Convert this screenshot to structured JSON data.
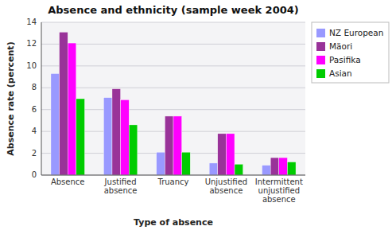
{
  "chart_data": {
    "type": "bar",
    "title": "Absence and ethnicity (sample week 2004)",
    "xlabel": "Type of absence",
    "ylabel": "Absence rate (percent)",
    "categories": [
      "Absence",
      "Justified\nabsence",
      "Truancy",
      "Unjustified\nabsence",
      "Intermittent\nunjustified\nabsence"
    ],
    "series": [
      {
        "name": "NZ European",
        "color": "#9999ff",
        "values": [
          9.3,
          7.1,
          2.1,
          1.1,
          0.9
        ]
      },
      {
        "name": "Mäori",
        "color": "#993399",
        "values": [
          13.1,
          7.9,
          5.4,
          3.8,
          1.6
        ]
      },
      {
        "name": "Pasifika",
        "color": "#ff00ff",
        "values": [
          12.1,
          6.9,
          5.4,
          3.8,
          1.6
        ]
      },
      {
        "name": "Asian",
        "color": "#00cc00",
        "values": [
          7.0,
          4.6,
          2.1,
          1.0,
          1.2
        ]
      }
    ],
    "ylim": [
      0,
      14
    ],
    "yticks": [
      0,
      2,
      4,
      6,
      8,
      10,
      12,
      14
    ],
    "grid": true,
    "legend": "right"
  }
}
